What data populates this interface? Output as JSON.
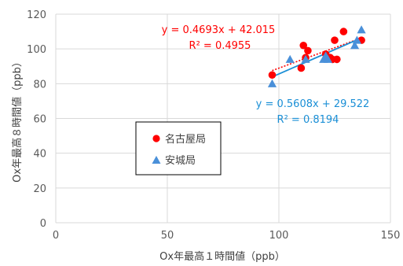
{
  "chart_data": {
    "type": "scatter",
    "xlabel": "Ox年最高１時間値（ppb）",
    "ylabel": "Ox年最高８時間値（ppb）",
    "xlim": [
      0,
      150
    ],
    "ylim": [
      0,
      120
    ],
    "xticks": [
      0,
      50,
      100,
      150
    ],
    "yticks": [
      0,
      20,
      40,
      60,
      80,
      100,
      120
    ],
    "grid": "vertical and horizontal major gridlines",
    "legend_position": "left-middle inside plot",
    "series": [
      {
        "name": "名古屋局",
        "marker": "circle",
        "color": "#ff0000",
        "points": [
          {
            "x": 97,
            "y": 85
          },
          {
            "x": 110,
            "y": 89
          },
          {
            "x": 111,
            "y": 102
          },
          {
            "x": 112,
            "y": 95
          },
          {
            "x": 113,
            "y": 99
          },
          {
            "x": 121,
            "y": 97
          },
          {
            "x": 123,
            "y": 95
          },
          {
            "x": 124,
            "y": 94
          },
          {
            "x": 125,
            "y": 105
          },
          {
            "x": 126,
            "y": 94
          },
          {
            "x": 129,
            "y": 110
          },
          {
            "x": 137,
            "y": 105
          }
        ],
        "trendline": {
          "slope": 0.4693,
          "intercept": 42.015,
          "x_range": [
            97,
            137
          ],
          "style": "dotted"
        },
        "equation": "y = 0.4693x + 42.015",
        "r2": "R² = 0.4955"
      },
      {
        "name": "安城局",
        "marker": "triangle",
        "color": "#4a90d9",
        "points": [
          {
            "x": 97,
            "y": 80
          },
          {
            "x": 105,
            "y": 94
          },
          {
            "x": 112,
            "y": 94
          },
          {
            "x": 120,
            "y": 94
          },
          {
            "x": 121,
            "y": 96
          },
          {
            "x": 122,
            "y": 94
          },
          {
            "x": 134,
            "y": 102
          },
          {
            "x": 135,
            "y": 105
          },
          {
            "x": 137,
            "y": 111
          }
        ],
        "trendline": {
          "slope": 0.5608,
          "intercept": 29.522,
          "x_range": [
            97,
            137
          ],
          "style": "solid",
          "color": "#1a8fd6"
        },
        "equation": "y = 0.5608x + 29.522",
        "r2": "R² = 0.8194"
      }
    ]
  }
}
